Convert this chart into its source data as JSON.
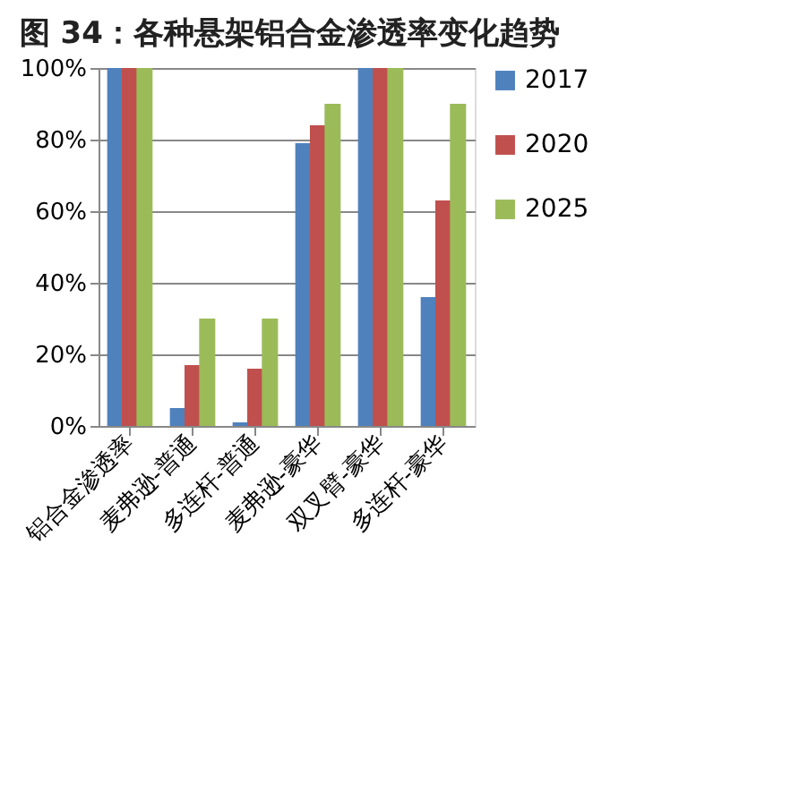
{
  "chart_data": {
    "type": "bar",
    "title": "图 34：各种悬架铝合金渗透率变化趋势",
    "categories": [
      "铝合金渗透率",
      "麦弗逊-普通",
      "多连杆-普通",
      "麦弗逊-豪华",
      "双叉臂-豪华",
      "多连杆-豪华"
    ],
    "series": [
      {
        "name": "2017",
        "color": "#4f81bd",
        "values": [
          100,
          5,
          1,
          79,
          100,
          36
        ]
      },
      {
        "name": "2020",
        "color": "#c0504d",
        "values": [
          100,
          17,
          16,
          84,
          100,
          63
        ]
      },
      {
        "name": "2025",
        "color": "#9bbb59",
        "values": [
          100,
          30,
          30,
          90,
          100,
          90
        ]
      }
    ],
    "ylim": [
      0,
      100
    ],
    "yticks": [
      {
        "value": 0,
        "label": "0%"
      },
      {
        "value": 20,
        "label": "20%"
      },
      {
        "value": 40,
        "label": "40%"
      },
      {
        "value": 60,
        "label": "60%"
      },
      {
        "value": 80,
        "label": "80%"
      },
      {
        "value": 100,
        "label": "100%"
      }
    ],
    "grid": "y",
    "legend": "right"
  }
}
